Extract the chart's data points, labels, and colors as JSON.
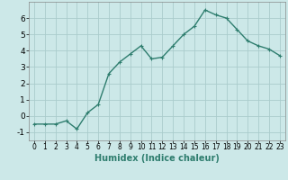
{
  "x": [
    0,
    1,
    2,
    3,
    4,
    5,
    6,
    7,
    8,
    9,
    10,
    11,
    12,
    13,
    14,
    15,
    16,
    17,
    18,
    19,
    20,
    21,
    22,
    23
  ],
  "y": [
    -0.5,
    -0.5,
    -0.5,
    -0.3,
    -0.8,
    0.2,
    0.7,
    2.6,
    3.3,
    3.8,
    4.3,
    3.5,
    3.6,
    4.3,
    5.0,
    5.5,
    6.5,
    6.2,
    6.0,
    5.3,
    4.6,
    4.3,
    4.1,
    3.7
  ],
  "line_color": "#2e7d6e",
  "marker": "+",
  "marker_size": 3,
  "bg_color": "#cce8e8",
  "grid_color": "#aacccc",
  "xlabel": "Humidex (Indice chaleur)",
  "ylim": [
    -1.5,
    7.0
  ],
  "xlim": [
    -0.5,
    23.5
  ],
  "yticks": [
    -1,
    0,
    1,
    2,
    3,
    4,
    5,
    6
  ],
  "xticks": [
    0,
    1,
    2,
    3,
    4,
    5,
    6,
    7,
    8,
    9,
    10,
    11,
    12,
    13,
    14,
    15,
    16,
    17,
    18,
    19,
    20,
    21,
    22,
    23
  ],
  "xlabel_fontsize": 7,
  "xtick_fontsize": 5.5,
  "ytick_fontsize": 6.5,
  "linewidth": 1.0,
  "markeredgewidth": 0.8
}
